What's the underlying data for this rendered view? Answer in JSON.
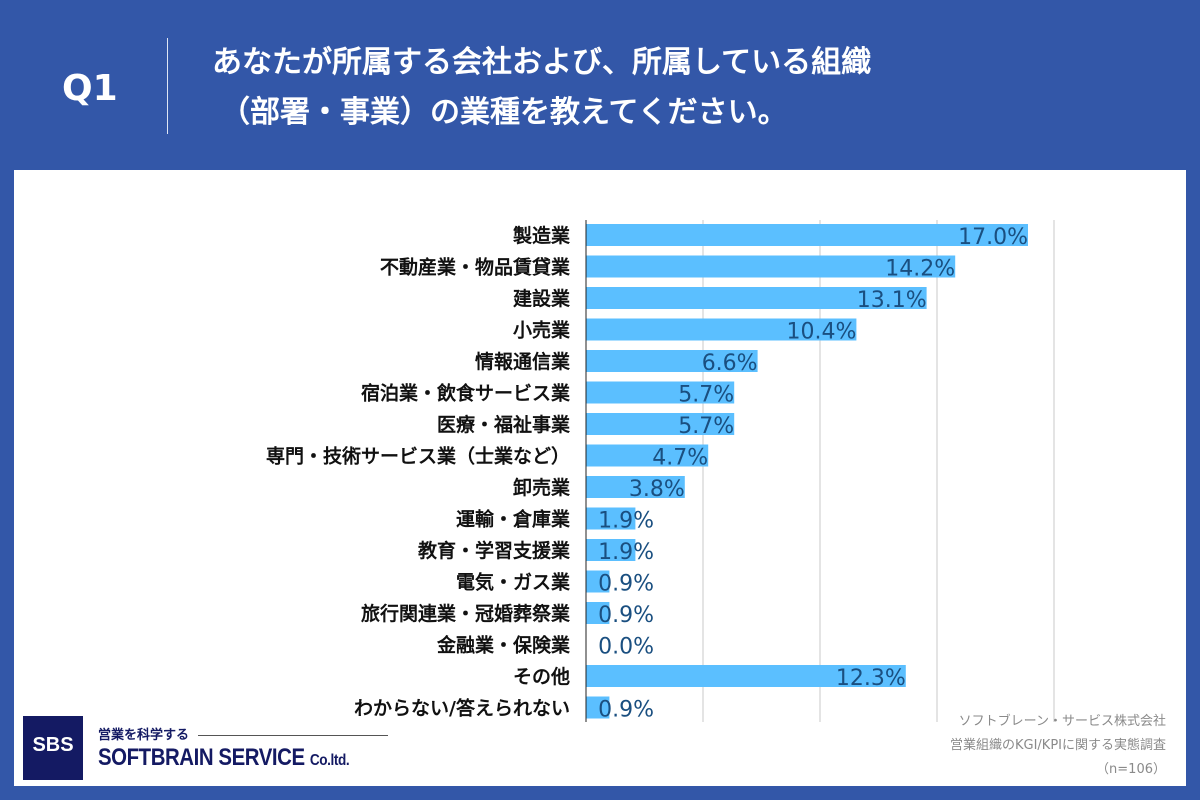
{
  "header": {
    "question": "Q1",
    "title_line1": "あなたが所属する会社および、所属している組織",
    "title_line2": "（部署・事業）の業種を教えてください。"
  },
  "footer": {
    "logo_text": "SBS",
    "tagline": "営業を科学する",
    "brand": "SOFTBRAIN SERVICE",
    "brand_suffix": "Co.ltd.",
    "source_line1": "ソフトブレーン・サービス株式会社",
    "source_line2": "営業組織のKGI/KPIに関する実態調査",
    "source_line3": "（n=106）"
  },
  "colors": {
    "background": "#3357a8",
    "bar": "#5bbfff",
    "value_label": "#1a4f80"
  },
  "chart_data": {
    "type": "bar",
    "orientation": "horizontal",
    "grid": true,
    "xlim": [
      0,
      18
    ],
    "categories": [
      "製造業",
      "不動産業・物品賃貸業",
      "建設業",
      "小売業",
      "情報通信業",
      "宿泊業・飲食サービス業",
      "医療・福祉事業",
      "専門・技術サービス業（士業など）",
      "卸売業",
      "運輸・倉庫業",
      "教育・学習支援業",
      "電気・ガス業",
      "旅行関連業・冠婚葬祭業",
      "金融業・保険業",
      "その他",
      "わからない/答えられない"
    ],
    "values": [
      17.0,
      14.2,
      13.1,
      10.4,
      6.6,
      5.7,
      5.7,
      4.7,
      3.8,
      1.9,
      1.9,
      0.9,
      0.9,
      0.0,
      12.3,
      0.9
    ],
    "labels": [
      "17.0%",
      "14.2%",
      "13.1%",
      "10.4%",
      "6.6%",
      "5.7%",
      "5.7%",
      "4.7%",
      "3.8%",
      "1.9%",
      "1.9%",
      "0.9%",
      "0.9%",
      "0.0%",
      "12.3%",
      "0.9%"
    ]
  }
}
